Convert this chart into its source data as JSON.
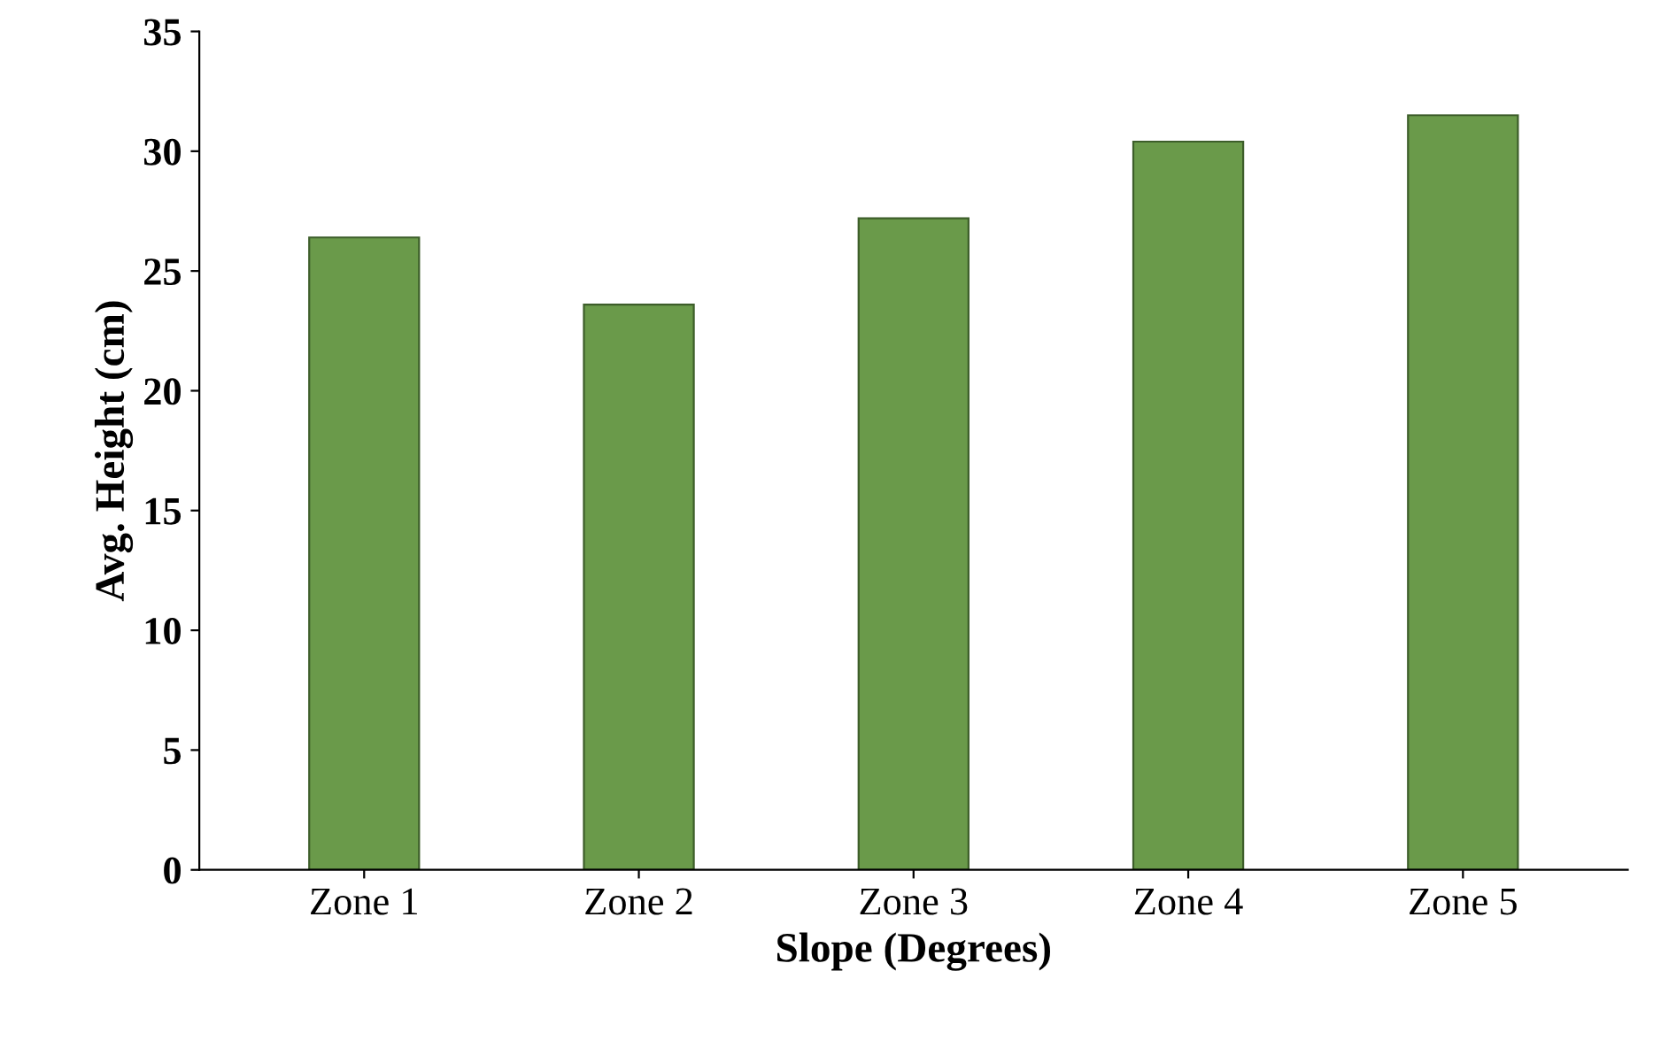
{
  "chart_data": {
    "type": "bar",
    "xlabel": "Slope (Degrees)",
    "ylabel": "Avg. Height (cm)",
    "categories": [
      "Zone 1",
      "Zone 2",
      "Zone 3",
      "Zone 4",
      "Zone 5"
    ],
    "values": [
      26.4,
      23.6,
      27.2,
      30.4,
      31.5
    ],
    "color": "#6a9a4a",
    "ylim": [
      0,
      35
    ],
    "yticks": [
      0,
      5,
      10,
      15,
      20,
      25,
      30,
      35
    ],
    "grid": false
  }
}
